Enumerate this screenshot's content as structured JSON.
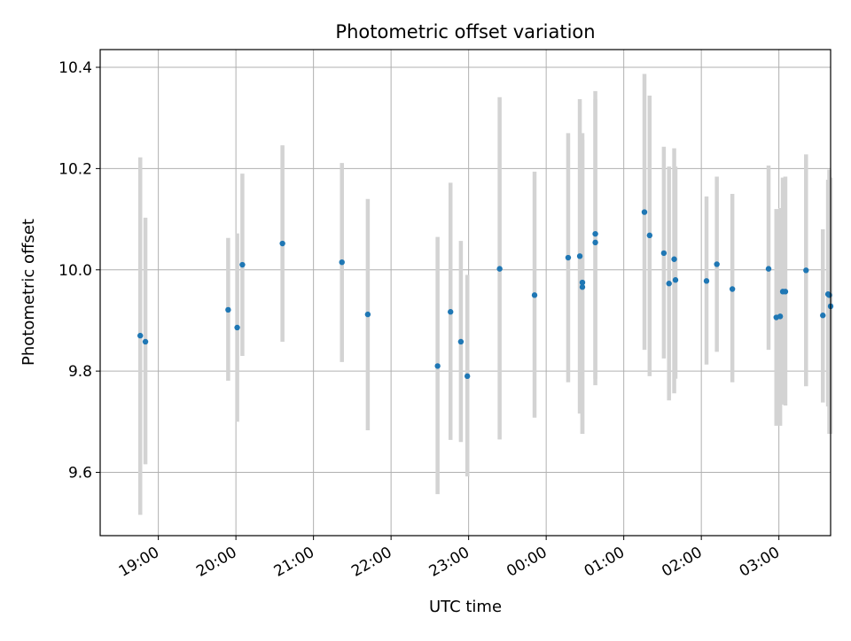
{
  "chart_data": {
    "type": "scatter",
    "title": "Photometric offset variation",
    "xlabel": "UTC time",
    "ylabel": "Photometric offset",
    "xlim": [
      "18:15",
      "03:40"
    ],
    "ylim": [
      9.475,
      10.435
    ],
    "x_ticks": [
      "19:00",
      "20:00",
      "21:00",
      "22:00",
      "23:00",
      "00:00",
      "01:00",
      "02:00",
      "03:00"
    ],
    "y_ticks": [
      9.6,
      9.8,
      10.0,
      10.2,
      10.4
    ],
    "y_tick_labels": [
      "9.6",
      "9.8",
      "10.0",
      "10.2",
      "10.4"
    ],
    "grid": true,
    "point_color": "#1f77b4",
    "errorbar_color": "#d3d3d3",
    "series": [
      {
        "x": [
          "18:46",
          "18:50",
          "19:54",
          "20:01",
          "20:05",
          "20:36",
          "21:22",
          "21:42",
          "22:36",
          "22:46",
          "22:54",
          "22:59",
          "23:24",
          "23:51",
          "00:17",
          "00:26",
          "00:28",
          "00:28",
          "00:38",
          "00:38",
          "01:16",
          "01:20",
          "01:31",
          "01:35",
          "01:39",
          "01:40",
          "02:04",
          "02:12",
          "02:24",
          "02:52",
          "02:58",
          "03:01",
          "03:03",
          "03:05",
          "03:21",
          "03:34",
          "03:38",
          "03:39"
        ],
        "y": [
          9.87,
          9.858,
          9.921,
          9.886,
          10.01,
          10.052,
          10.015,
          9.912,
          9.81,
          9.917,
          9.858,
          9.79,
          10.002,
          9.95,
          10.024,
          10.027,
          9.975,
          9.966,
          10.054,
          10.071,
          10.114,
          10.068,
          10.033,
          9.973,
          10.021,
          9.98,
          9.978,
          10.011,
          9.962,
          10.002,
          9.906,
          9.908,
          9.957,
          9.957,
          9.999,
          9.91,
          9.952,
          9.95
        ],
        "err_low": [
          9.516,
          9.616,
          9.781,
          9.7,
          9.83,
          9.858,
          9.818,
          9.683,
          9.557,
          9.664,
          9.66,
          9.592,
          9.665,
          9.708,
          9.778,
          9.716,
          9.676,
          9.676,
          9.772,
          9.785,
          9.842,
          9.79,
          9.825,
          9.742,
          9.756,
          9.785,
          9.813,
          9.838,
          9.778,
          9.842,
          9.692,
          9.692,
          9.734,
          9.732,
          9.77,
          9.738,
          9.73,
          9.676
        ],
        "err_high": [
          10.222,
          10.103,
          10.063,
          10.072,
          10.19,
          10.246,
          10.211,
          10.14,
          10.065,
          10.172,
          10.057,
          9.99,
          10.341,
          10.194,
          10.27,
          10.337,
          10.27,
          10.257,
          10.337,
          10.353,
          10.387,
          10.344,
          10.243,
          10.204,
          10.24,
          10.204,
          10.145,
          10.184,
          10.15,
          10.206,
          10.12,
          10.122,
          10.182,
          10.184,
          10.228,
          10.08,
          10.178,
          10.198
        ]
      },
      {
        "x": [
          "03:40"
        ],
        "y": [
          9.928
        ],
        "err_low": [
          9.676
        ],
        "err_high": [
          10.182
        ]
      }
    ]
  }
}
